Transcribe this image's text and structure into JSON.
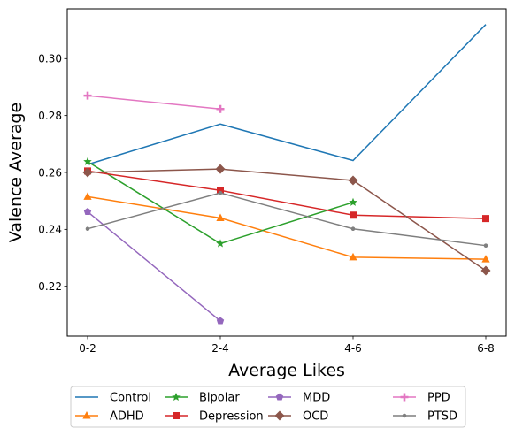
{
  "chart_data": {
    "type": "line",
    "xlabel": "Average Likes",
    "ylabel": "Valence Average",
    "categories": [
      "0-2",
      "2-4",
      "4-6",
      "6-8"
    ],
    "ylim": [
      0.2025,
      0.3175
    ],
    "yticks": [
      0.22,
      0.24,
      0.26,
      0.28,
      0.3
    ],
    "ytick_labels": [
      "0.22",
      "0.24",
      "0.26",
      "0.28",
      "0.30"
    ],
    "grid": false,
    "legend": {
      "placement": "bottom-center-outside",
      "columns": 4
    },
    "series": [
      {
        "name": "Control",
        "color": "#1f77b4",
        "marker": "none",
        "values": [
          0.2628,
          0.277,
          0.2642,
          0.312
        ]
      },
      {
        "name": "ADHD",
        "color": "#ff7f0e",
        "marker": "triangle",
        "values": [
          0.2515,
          0.244,
          0.2302,
          0.2295
        ]
      },
      {
        "name": "Bipolar",
        "color": "#2ca02c",
        "marker": "star",
        "values": [
          0.2638,
          0.235,
          0.2495,
          null
        ]
      },
      {
        "name": "Depression",
        "color": "#d62728",
        "marker": "square",
        "values": [
          0.2605,
          0.2537,
          0.245,
          0.2438
        ]
      },
      {
        "name": "MDD",
        "color": "#9467bd",
        "marker": "pentagon",
        "values": [
          0.2462,
          0.2078,
          null,
          null
        ]
      },
      {
        "name": "OCD",
        "color": "#8c564b",
        "marker": "diamond",
        "values": [
          0.26,
          0.2612,
          0.2572,
          0.2255
        ]
      },
      {
        "name": "PPD",
        "color": "#e377c2",
        "marker": "plus",
        "values": [
          0.287,
          0.2823,
          null,
          null
        ]
      },
      {
        "name": "PTSD",
        "color": "#7f7f7f",
        "marker": "dot",
        "values": [
          0.2402,
          0.2528,
          0.2402,
          0.2343
        ]
      }
    ]
  }
}
